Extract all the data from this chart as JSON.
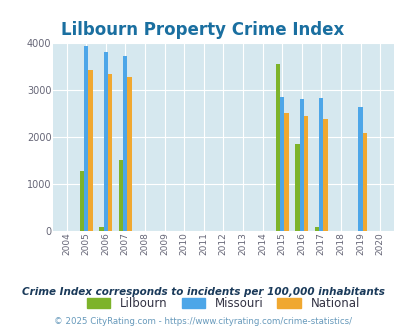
{
  "title": "Lilbourn Property Crime Index",
  "years": [
    2004,
    2005,
    2006,
    2007,
    2008,
    2009,
    2010,
    2011,
    2012,
    2013,
    2014,
    2015,
    2016,
    2017,
    2018,
    2019,
    2020
  ],
  "lilbourn": [
    null,
    1280,
    90,
    1500,
    null,
    null,
    null,
    null,
    null,
    null,
    null,
    3550,
    1860,
    90,
    null,
    null,
    null
  ],
  "missouri": [
    null,
    3940,
    3810,
    3720,
    null,
    null,
    null,
    null,
    null,
    null,
    null,
    2850,
    2800,
    2830,
    null,
    2640,
    null
  ],
  "national": [
    null,
    3420,
    3340,
    3280,
    null,
    null,
    null,
    null,
    null,
    null,
    null,
    2500,
    2450,
    2390,
    null,
    2090,
    null
  ],
  "lilbourn_color": "#7db32a",
  "missouri_color": "#4da6e8",
  "national_color": "#f0a830",
  "bg_color": "#d6e8ef",
  "ylim": [
    0,
    4000
  ],
  "yticks": [
    0,
    1000,
    2000,
    3000,
    4000
  ],
  "subtitle": "Crime Index corresponds to incidents per 100,000 inhabitants",
  "footer": "© 2025 CityRating.com - https://www.cityrating.com/crime-statistics/",
  "title_color": "#1a6fa0",
  "subtitle_color": "#1a3a5a",
  "footer_color": "#6699bb"
}
